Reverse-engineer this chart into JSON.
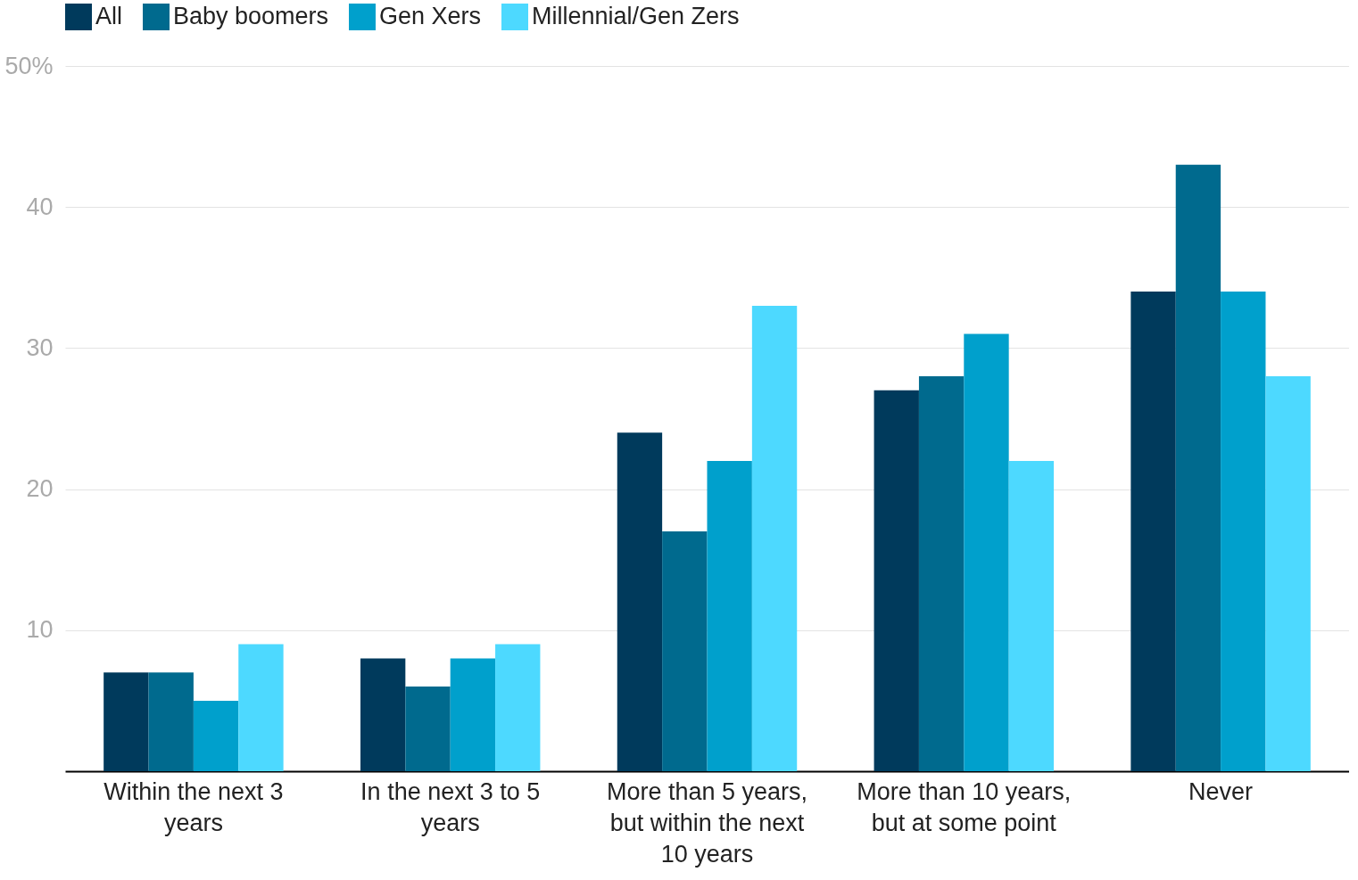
{
  "chart_data": {
    "type": "bar",
    "categories": [
      "Within the next 3 years",
      "In the next 3 to 5 years",
      "More than 5 years, but within the next 10 years",
      "More than 10 years, but at some point",
      "Never"
    ],
    "series": [
      {
        "name": "All",
        "color": "#003a5c",
        "values": [
          7,
          8,
          24,
          27,
          34
        ]
      },
      {
        "name": "Baby boomers",
        "color": "#006a8e",
        "values": [
          7,
          6,
          17,
          28,
          43
        ]
      },
      {
        "name": "Gen Xers",
        "color": "#00a0cc",
        "values": [
          5,
          8,
          22,
          31,
          34
        ]
      },
      {
        "name": "Millennial/Gen Zers",
        "color": "#4dd9ff",
        "values": [
          9,
          9,
          33,
          22,
          28
        ]
      }
    ],
    "ylim": [
      0,
      50
    ],
    "yticks": [
      10,
      20,
      30,
      40,
      {
        "value": 50,
        "label": "50%"
      }
    ],
    "grid": "y",
    "legend": "top left"
  }
}
